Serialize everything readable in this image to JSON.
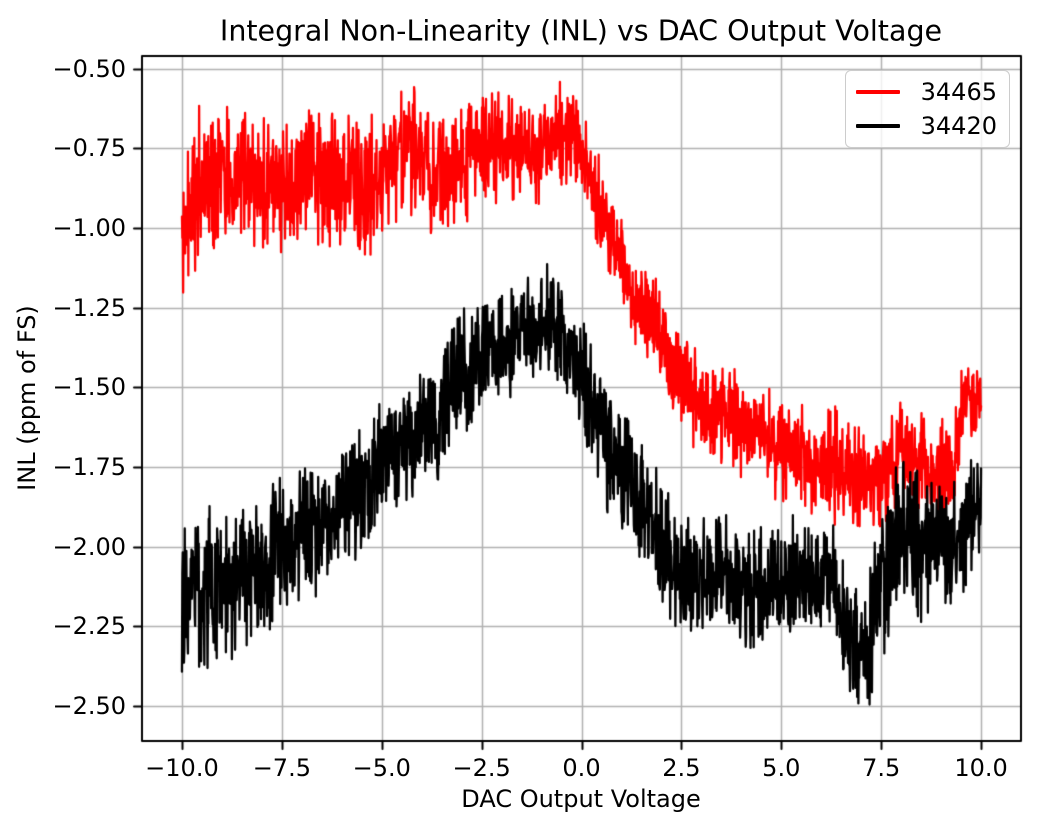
{
  "figure": {
    "title": "Integral Non-Linearity (INL) vs DAC Output Voltage",
    "xlabel": "DAC Output Voltage",
    "ylabel": "INL (ppm of FS)"
  },
  "colors": {
    "series_red": "#ff0000",
    "series_black": "#000000",
    "grid": "#b0b0b0",
    "spine": "#000000",
    "legend_edge": "#cccccc",
    "background": "#ffffff"
  },
  "chart_data": {
    "type": "line",
    "title": "Integral Non-Linearity (INL) vs DAC Output Voltage",
    "xlabel": "DAC Output Voltage",
    "ylabel": "INL (ppm of FS)",
    "xlim": [
      -11,
      11
    ],
    "ylim": [
      -2.61,
      -0.46
    ],
    "grid": true,
    "legend_position": "upper right",
    "xticks": {
      "values": [
        -10.0,
        -7.5,
        -5.0,
        -2.5,
        0.0,
        2.5,
        5.0,
        7.5,
        10.0
      ],
      "labels": [
        "−10.0",
        "−7.5",
        "−5.0",
        "−2.5",
        "0.0",
        "2.5",
        "5.0",
        "7.5",
        "10.0"
      ]
    },
    "yticks": {
      "values": [
        -0.5,
        -0.75,
        -1.0,
        -1.25,
        -1.5,
        -1.75,
        -2.0,
        -2.25,
        -2.5
      ],
      "labels": [
        "−0.50",
        "−0.75",
        "−1.00",
        "−1.25",
        "−1.50",
        "−1.75",
        "−2.00",
        "−2.25",
        "−2.50"
      ]
    },
    "x_range": [
      -10,
      10
    ],
    "x_step": 0.01,
    "series": [
      {
        "name": "34465",
        "color": "#ff0000",
        "line_width": 2.3,
        "seed": 7,
        "trend": [
          [
            -10,
            -1.03
          ],
          [
            -9.85,
            -0.9
          ],
          [
            -9.6,
            -0.86
          ],
          [
            -9,
            -0.86
          ],
          [
            -8.5,
            -0.855
          ],
          [
            -8,
            -0.85
          ],
          [
            -7.5,
            -0.86
          ],
          [
            -7,
            -0.85
          ],
          [
            -6.5,
            -0.855
          ],
          [
            -6,
            -0.845
          ],
          [
            -5.5,
            -0.845
          ],
          [
            -5,
            -0.835
          ],
          [
            -4.6,
            -0.8
          ],
          [
            -4.2,
            -0.775
          ],
          [
            -3.8,
            -0.8
          ],
          [
            -3.4,
            -0.815
          ],
          [
            -3,
            -0.79
          ],
          [
            -2.6,
            -0.76
          ],
          [
            -2.2,
            -0.745
          ],
          [
            -1.8,
            -0.745
          ],
          [
            -1.4,
            -0.75
          ],
          [
            -1,
            -0.73
          ],
          [
            -0.6,
            -0.72
          ],
          [
            -0.2,
            -0.72
          ],
          [
            0,
            -0.76
          ],
          [
            0.5,
            -0.95
          ],
          [
            1,
            -1.1
          ],
          [
            1.5,
            -1.26
          ],
          [
            2,
            -1.38
          ],
          [
            2.5,
            -1.47
          ],
          [
            3,
            -1.54
          ],
          [
            3.5,
            -1.58
          ],
          [
            4,
            -1.62
          ],
          [
            4.5,
            -1.645
          ],
          [
            5,
            -1.67
          ],
          [
            5.5,
            -1.71
          ],
          [
            6,
            -1.745
          ],
          [
            6.5,
            -1.775
          ],
          [
            6.9,
            -1.8
          ],
          [
            7.2,
            -1.78
          ],
          [
            7.5,
            -1.755
          ],
          [
            8,
            -1.72
          ],
          [
            8.4,
            -1.745
          ],
          [
            8.8,
            -1.76
          ],
          [
            9.2,
            -1.745
          ],
          [
            9.45,
            -1.65
          ],
          [
            9.6,
            -1.47
          ],
          [
            9.75,
            -1.52
          ],
          [
            10,
            -1.52
          ]
        ],
        "noise_amp": [
          [
            -10,
            0.13
          ],
          [
            -8,
            0.125
          ],
          [
            -6,
            0.12
          ],
          [
            -4,
            0.115
          ],
          [
            -2.5,
            0.1
          ],
          [
            0,
            0.095
          ],
          [
            1,
            0.09
          ],
          [
            3,
            0.09
          ],
          [
            5,
            0.09
          ],
          [
            6.5,
            0.1
          ],
          [
            7.5,
            0.09
          ],
          [
            8.5,
            0.085
          ],
          [
            9.3,
            0.08
          ],
          [
            9.6,
            0.07
          ],
          [
            10,
            0.09
          ]
        ]
      },
      {
        "name": "34420",
        "color": "#000000",
        "line_width": 2.3,
        "seed": 3,
        "trend": [
          [
            -10,
            -2.16
          ],
          [
            -9.5,
            -2.15
          ],
          [
            -9,
            -2.13
          ],
          [
            -8.5,
            -2.09
          ],
          [
            -8,
            -2.04
          ],
          [
            -7.5,
            -2.02
          ],
          [
            -7,
            -1.975
          ],
          [
            -6.5,
            -1.925
          ],
          [
            -6,
            -1.87
          ],
          [
            -5.5,
            -1.815
          ],
          [
            -5,
            -1.775
          ],
          [
            -4.5,
            -1.7
          ],
          [
            -4,
            -1.625
          ],
          [
            -3.5,
            -1.555
          ],
          [
            -3,
            -1.475
          ],
          [
            -2.5,
            -1.4
          ],
          [
            -2,
            -1.345
          ],
          [
            -1.5,
            -1.315
          ],
          [
            -1,
            -1.315
          ],
          [
            -0.5,
            -1.345
          ],
          [
            -0.2,
            -1.385
          ],
          [
            0,
            -1.46
          ],
          [
            0.5,
            -1.63
          ],
          [
            1,
            -1.77
          ],
          [
            1.5,
            -1.875
          ],
          [
            2,
            -1.99
          ],
          [
            2.5,
            -2.07
          ],
          [
            3,
            -2.11
          ],
          [
            3.5,
            -2.115
          ],
          [
            4,
            -2.12
          ],
          [
            4.5,
            -2.105
          ],
          [
            5,
            -2.11
          ],
          [
            5.5,
            -2.105
          ],
          [
            6,
            -2.12
          ],
          [
            6.4,
            -2.15
          ],
          [
            6.7,
            -2.24
          ],
          [
            7,
            -2.31
          ],
          [
            7.2,
            -2.28
          ],
          [
            7.5,
            -2.1
          ],
          [
            7.8,
            -1.97
          ],
          [
            8.1,
            -1.94
          ],
          [
            8.5,
            -2.0
          ],
          [
            9,
            -1.995
          ],
          [
            9.5,
            -1.96
          ],
          [
            9.8,
            -1.92
          ],
          [
            10,
            -1.87
          ]
        ],
        "noise_amp": [
          [
            -10,
            0.135
          ],
          [
            -8.5,
            0.135
          ],
          [
            -7,
            0.125
          ],
          [
            -5,
            0.115
          ],
          [
            -3,
            0.105
          ],
          [
            -1.5,
            0.1
          ],
          [
            0,
            0.105
          ],
          [
            1.5,
            0.11
          ],
          [
            3,
            0.11
          ],
          [
            5,
            0.115
          ],
          [
            6.5,
            0.11
          ],
          [
            7,
            0.105
          ],
          [
            7.6,
            0.15
          ],
          [
            8.2,
            0.15
          ],
          [
            8.8,
            0.115
          ],
          [
            9.5,
            0.105
          ],
          [
            10,
            0.1
          ]
        ]
      }
    ]
  },
  "legend": {
    "items": [
      {
        "label": "34465",
        "color": "#ff0000"
      },
      {
        "label": "34420",
        "color": "#000000"
      }
    ]
  }
}
